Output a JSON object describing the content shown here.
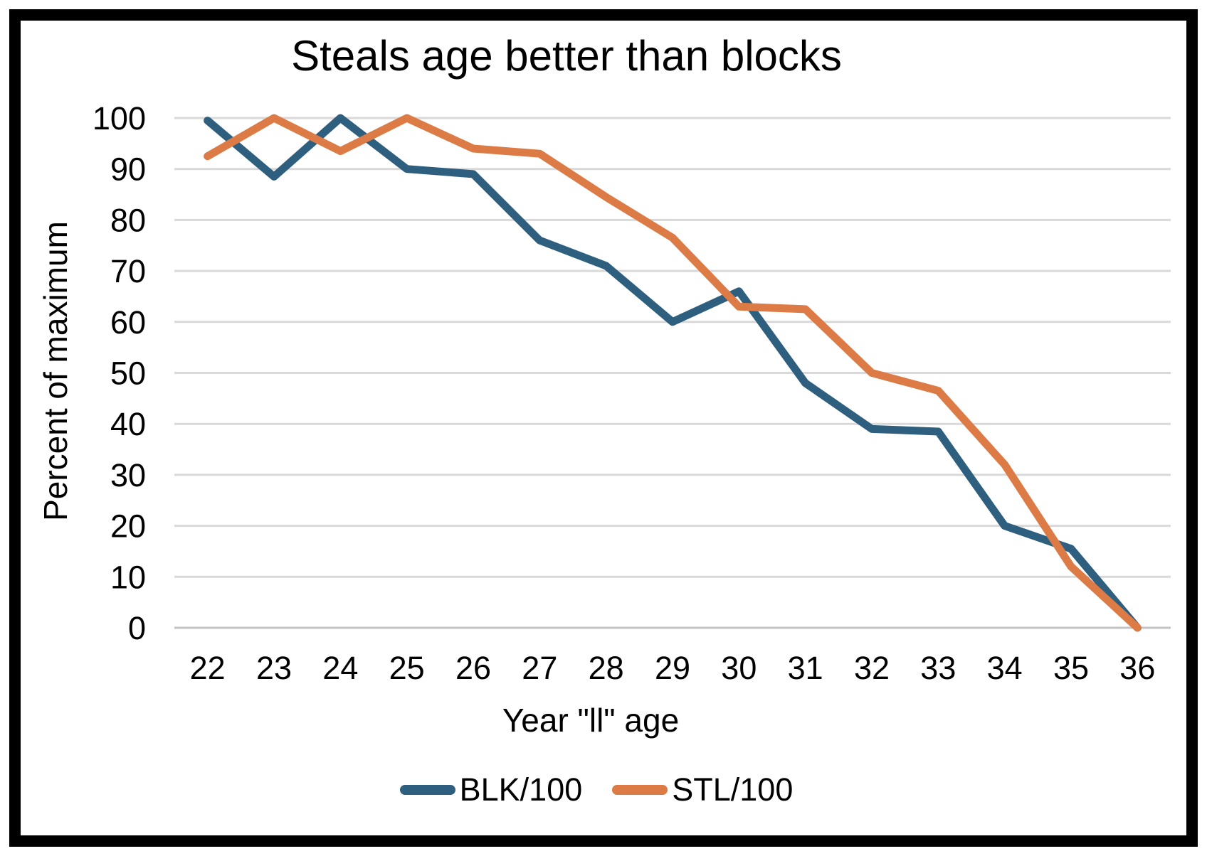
{
  "title": "Steals age better than blocks",
  "chart_data": {
    "type": "line",
    "title": "Steals age better than blocks",
    "x": [
      22,
      23,
      24,
      25,
      26,
      27,
      28,
      29,
      30,
      31,
      32,
      33,
      34,
      35,
      36
    ],
    "series": [
      {
        "name": "BLK/100",
        "color": "#2F5F7F",
        "values": [
          99.5,
          88.5,
          100,
          90,
          89,
          76,
          71,
          60,
          66,
          48,
          39,
          38.5,
          20,
          15.5,
          0
        ]
      },
      {
        "name": "STL/100",
        "color": "#DC7B45",
        "values": [
          92.5,
          100,
          93.5,
          100,
          94,
          93,
          84.5,
          76.5,
          63,
          62.5,
          50,
          46.5,
          32,
          12,
          0
        ]
      }
    ],
    "xlabel": "Year \"ll\" age",
    "ylabel": "Percent of maximum",
    "ylim": [
      0,
      100
    ],
    "yticks": [
      0,
      10,
      20,
      30,
      40,
      50,
      60,
      70,
      80,
      90,
      100
    ],
    "grid": "horizontal",
    "gridline_color": "#D9D9D9",
    "axis_line_color": "#C3C3C3",
    "legend_position": "bottom",
    "line_width": 11
  }
}
